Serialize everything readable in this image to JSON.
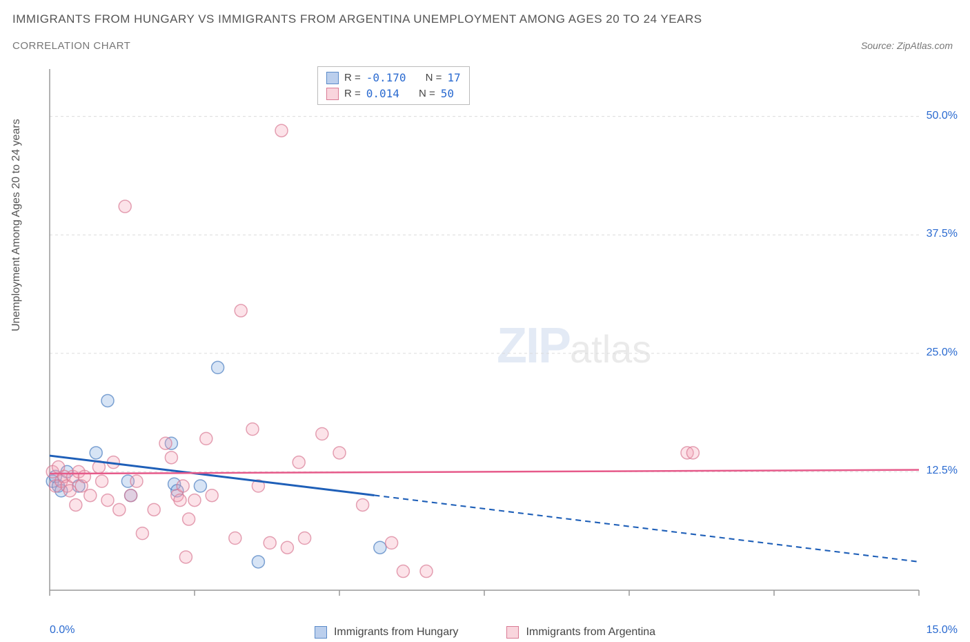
{
  "title": "IMMIGRANTS FROM HUNGARY VS IMMIGRANTS FROM ARGENTINA UNEMPLOYMENT AMONG AGES 20 TO 24 YEARS",
  "subtitle": "CORRELATION CHART",
  "source": "Source: ZipAtlas.com",
  "y_axis_label": "Unemployment Among Ages 20 to 24 years",
  "watermark_bold": "ZIP",
  "watermark_light": "atlas",
  "chart": {
    "type": "scatter",
    "background_color": "#ffffff",
    "grid_color": "#dcdcdc",
    "axis_color": "#999999",
    "xlim": [
      0,
      15
    ],
    "ylim": [
      0,
      55
    ],
    "x_ticks": [
      0,
      2.5,
      5,
      7.5,
      10,
      12.5,
      15
    ],
    "y_gridlines": [
      12.5,
      25,
      37.5,
      50
    ],
    "y_tick_labels": [
      "12.5%",
      "25.0%",
      "37.5%",
      "50.0%"
    ],
    "x_left_label": "0.0%",
    "x_right_label": "15.0%",
    "marker_radius": 9,
    "marker_stroke_opacity": 0.7,
    "marker_fill_opacity": 0.3
  },
  "series": [
    {
      "name": "Immigrants from Hungary",
      "color_fill": "#7ba7dd",
      "color_stroke": "#4a7dc0",
      "r_value": "-0.170",
      "n_value": "17",
      "trend": {
        "y_at_x0": 14.2,
        "y_at_x15": 3.0,
        "solid_until_x": 5.6,
        "color": "#1e5fb8",
        "width": 3
      },
      "points": [
        [
          0.05,
          11.5
        ],
        [
          0.1,
          12.0
        ],
        [
          0.15,
          11.0
        ],
        [
          0.2,
          10.5
        ],
        [
          0.3,
          12.5
        ],
        [
          0.5,
          11.0
        ],
        [
          0.8,
          14.5
        ],
        [
          1.0,
          20.0
        ],
        [
          1.35,
          11.5
        ],
        [
          1.4,
          10.0
        ],
        [
          2.1,
          15.5
        ],
        [
          2.15,
          11.2
        ],
        [
          2.2,
          10.5
        ],
        [
          2.6,
          11.0
        ],
        [
          2.9,
          23.5
        ],
        [
          3.6,
          3.0
        ],
        [
          5.7,
          4.5
        ]
      ]
    },
    {
      "name": "Immigrants from Argentina",
      "color_fill": "#f4a3b5",
      "color_stroke": "#d97a94",
      "r_value": "0.014",
      "n_value": "50",
      "trend": {
        "y_at_x0": 12.3,
        "y_at_x15": 12.7,
        "solid_until_x": 15,
        "color": "#e65a8a",
        "width": 2.5
      },
      "points": [
        [
          0.05,
          12.5
        ],
        [
          0.1,
          11.0
        ],
        [
          0.15,
          13.0
        ],
        [
          0.2,
          11.5
        ],
        [
          0.25,
          12.0
        ],
        [
          0.3,
          11.0
        ],
        [
          0.35,
          10.5
        ],
        [
          0.4,
          12.0
        ],
        [
          0.45,
          9.0
        ],
        [
          0.5,
          12.5
        ],
        [
          0.55,
          11.0
        ],
        [
          0.6,
          12.0
        ],
        [
          0.7,
          10.0
        ],
        [
          0.85,
          13.0
        ],
        [
          0.9,
          11.5
        ],
        [
          1.0,
          9.5
        ],
        [
          1.1,
          13.5
        ],
        [
          1.2,
          8.5
        ],
        [
          1.3,
          40.5
        ],
        [
          1.4,
          10.0
        ],
        [
          1.5,
          11.5
        ],
        [
          1.6,
          6.0
        ],
        [
          1.8,
          8.5
        ],
        [
          2.0,
          15.5
        ],
        [
          2.1,
          14.0
        ],
        [
          2.2,
          10.0
        ],
        [
          2.25,
          9.5
        ],
        [
          2.3,
          11.0
        ],
        [
          2.35,
          3.5
        ],
        [
          2.4,
          7.5
        ],
        [
          2.5,
          9.5
        ],
        [
          2.7,
          16.0
        ],
        [
          2.8,
          10.0
        ],
        [
          3.2,
          5.5
        ],
        [
          3.3,
          29.5
        ],
        [
          3.5,
          17.0
        ],
        [
          3.6,
          11.0
        ],
        [
          3.8,
          5.0
        ],
        [
          4.0,
          48.5
        ],
        [
          4.1,
          4.5
        ],
        [
          4.3,
          13.5
        ],
        [
          4.4,
          5.5
        ],
        [
          4.7,
          16.5
        ],
        [
          5.0,
          14.5
        ],
        [
          5.4,
          9.0
        ],
        [
          5.9,
          5.0
        ],
        [
          6.1,
          2.0
        ],
        [
          6.5,
          2.0
        ],
        [
          11.0,
          14.5
        ],
        [
          11.1,
          14.5
        ]
      ]
    }
  ],
  "legend_top": {
    "r_label": "R =",
    "n_label": "N ="
  },
  "legend_bottom": [
    {
      "label": "Immigrants from Hungary",
      "swatch": "blue"
    },
    {
      "label": "Immigrants from Argentina",
      "swatch": "pink"
    }
  ]
}
